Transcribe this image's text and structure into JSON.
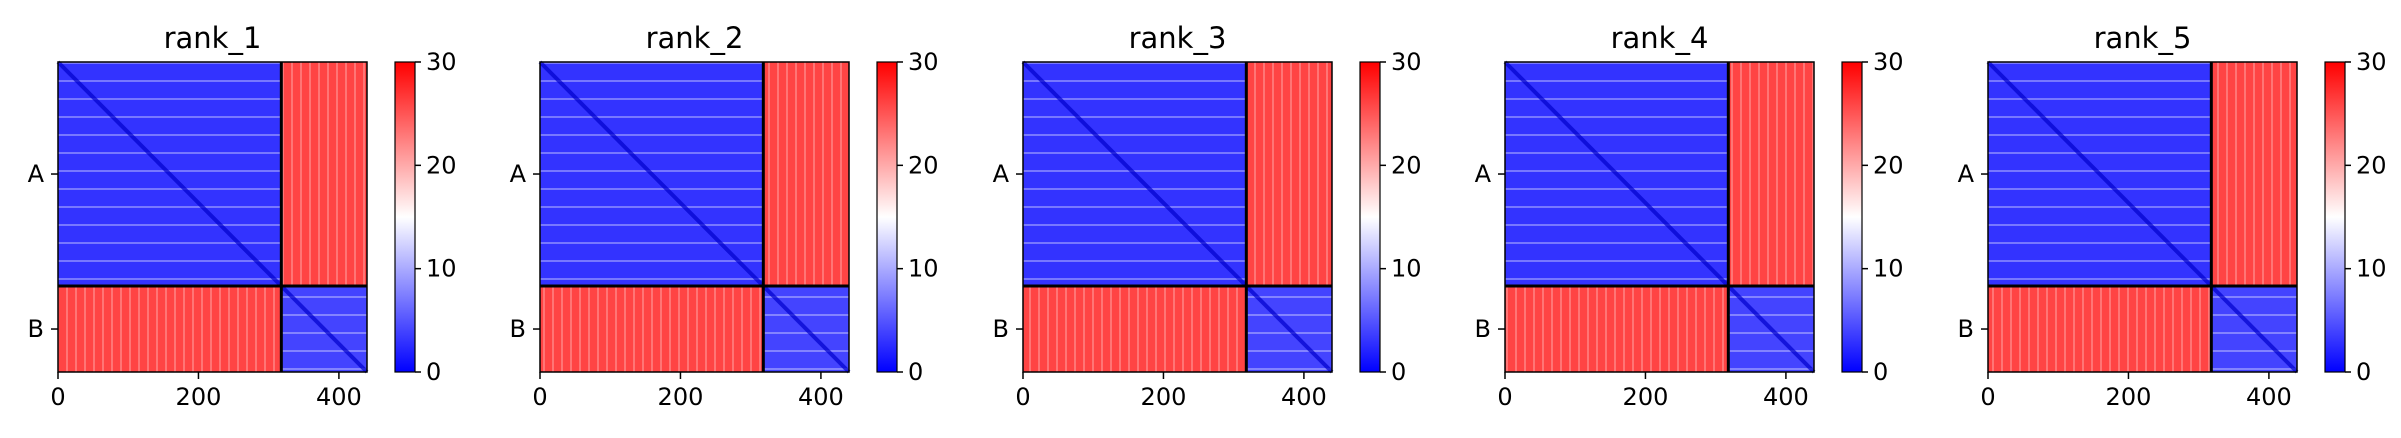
{
  "chart_data": {
    "type": "heatmap",
    "description_free": true,
    "panels": [
      {
        "title": "rank_1"
      },
      {
        "title": "rank_2"
      },
      {
        "title": "rank_3"
      },
      {
        "title": "rank_4"
      },
      {
        "title": "rank_5"
      }
    ],
    "chains": [
      {
        "label": "A",
        "start": 0,
        "end": 318
      },
      {
        "label": "B",
        "start": 318,
        "end": 440
      }
    ],
    "x_range": [
      0,
      440
    ],
    "x_ticks": [
      "0",
      "200",
      "400"
    ],
    "x_tick_values": [
      0,
      200,
      400
    ],
    "y_ticks": [
      "A",
      "B"
    ],
    "colorbar": {
      "range": [
        0,
        30
      ],
      "ticks": [
        "0",
        "10",
        "20",
        "30"
      ],
      "tick_values": [
        0,
        10,
        20,
        30
      ],
      "colormap": "bwr",
      "low_color": "#0000ff",
      "mid_color": "#ffffff",
      "high_color": "#ff0000"
    },
    "blocks": [
      {
        "rows": "A",
        "cols": "A",
        "level": 3
      },
      {
        "rows": "A",
        "cols": "B",
        "level": 26
      },
      {
        "rows": "B",
        "cols": "A",
        "level": 26
      },
      {
        "rows": "B",
        "cols": "B",
        "level": 4
      }
    ],
    "grid": false
  }
}
